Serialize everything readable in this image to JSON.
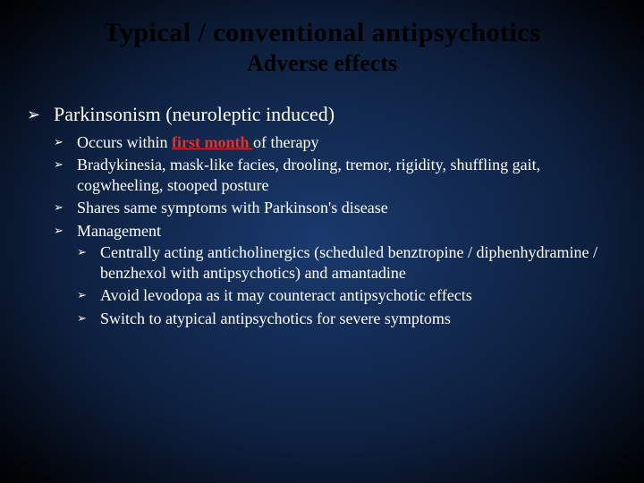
{
  "title": "Typical / conventional antipsychotics",
  "subtitle": "Adverse effects",
  "colors": {
    "background_gradient_center": "#1a3a6e",
    "background_gradient_mid": "#0d1f3d",
    "background_gradient_edge": "#000000",
    "title_color": "#000000",
    "body_text_color": "#ffffff",
    "emphasis_color": "#e03030"
  },
  "typography": {
    "font_family": "Garamond / Georgia serif",
    "title_size_pt": 30,
    "subtitle_size_pt": 26,
    "lvl1_size_pt": 22,
    "lvl2_size_pt": 18,
    "lvl3_size_pt": 18
  },
  "bullet_glyph": "➢",
  "main": {
    "heading": "Parkinsonism (neuroleptic induced)",
    "points": {
      "p1_pre": "Occurs within ",
      "p1_emph": "first month ",
      "p1_post": "of therapy",
      "p2": "Bradykinesia, mask-like facies, drooling, tremor, rigidity, shuffling gait, cogwheeling, stooped posture",
      "p3": "Shares same symptoms with Parkinson's disease",
      "p4": "Management",
      "mgmt": {
        "m1": "Centrally acting anticholinergics (scheduled benztropine / diphenhydramine / benzhexol with antipsychotics) and amantadine",
        "m2": "Avoid levodopa as it may counteract antipsychotic effects",
        "m3": "Switch to atypical antipsychotics for severe symptoms"
      }
    }
  }
}
